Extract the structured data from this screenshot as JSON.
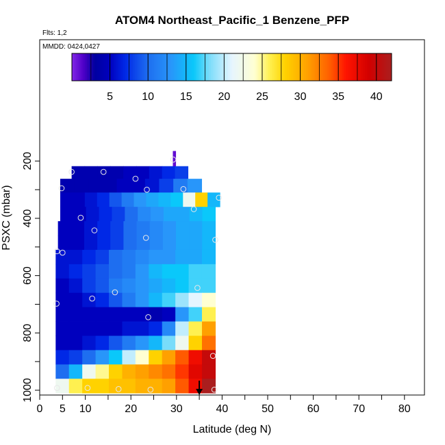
{
  "chart_data": {
    "type": "heatmap",
    "title": "ATOM4 Northeast_Pacific_1 Benzene_PFP",
    "flights_label": "Flts: 1,2",
    "dates_label": "MMDD: 0424,0427",
    "xlabel": "Latitude (deg N)",
    "ylabel": "PSXC (mbar)",
    "xlim": [
      0,
      85
    ],
    "ylim": [
      1010,
      0
    ],
    "x_ticks": [
      0,
      5,
      10,
      20,
      30,
      40,
      50,
      60,
      70,
      80
    ],
    "y_ticks": [
      200,
      400,
      600,
      800,
      1000
    ],
    "colorbar": {
      "range": [
        0,
        42
      ],
      "ticks": [
        5,
        10,
        15,
        20,
        25,
        30,
        35,
        40
      ]
    },
    "latitude_marker": 35,
    "bands": [
      {
        "p_top": 165,
        "p_bot": 218,
        "lat_start": 29.2,
        "lat_end": 29.8,
        "values": [
          1,
          1
        ]
      },
      {
        "p_top": 218,
        "p_bot": 262,
        "lat_start": 7,
        "lat_end": 32.5,
        "values": [
          4,
          4,
          4,
          4,
          5,
          5,
          6,
          7,
          8
        ]
      },
      {
        "p_top": 262,
        "p_bot": 310,
        "lat_start": 4.5,
        "lat_end": 35.5,
        "values": [
          4,
          4,
          4,
          4,
          5,
          5,
          6,
          8,
          11,
          13
        ]
      },
      {
        "p_top": 310,
        "p_bot": 360,
        "lat_start": 4.5,
        "lat_end": 39.5,
        "values": [
          5,
          5,
          6,
          7,
          9,
          11,
          13,
          14,
          15,
          16,
          22,
          28,
          15
        ]
      },
      {
        "p_top": 360,
        "p_bot": 410,
        "lat_start": 4.5,
        "lat_end": 38.5,
        "values": [
          5,
          5,
          6,
          7,
          8,
          10,
          12,
          13,
          14,
          14,
          15,
          16
        ]
      },
      {
        "p_top": 410,
        "p_bot": 460,
        "lat_start": 4,
        "lat_end": 38.5,
        "values": [
          5,
          5,
          6,
          7,
          8,
          10,
          11,
          12,
          13,
          14,
          14,
          15
        ]
      },
      {
        "p_top": 460,
        "p_bot": 510,
        "lat_start": 4,
        "lat_end": 38.5,
        "values": [
          5,
          5,
          6,
          7,
          8,
          10,
          11,
          12,
          13,
          14,
          14,
          15
        ]
      },
      {
        "p_top": 510,
        "p_bot": 560,
        "lat_start": 3.5,
        "lat_end": 38.5,
        "values": [
          6,
          6,
          7,
          8,
          10,
          11,
          12,
          13,
          13,
          14,
          14,
          15
        ]
      },
      {
        "p_top": 560,
        "p_bot": 610,
        "lat_start": 3.5,
        "lat_end": 38.5,
        "values": [
          6,
          7,
          8,
          9,
          10,
          11,
          13,
          15,
          16,
          16,
          17,
          17
        ]
      },
      {
        "p_top": 610,
        "p_bot": 660,
        "lat_start": 3.5,
        "lat_end": 38.5,
        "values": [
          5,
          6,
          8,
          9,
          11,
          12,
          13,
          14,
          15,
          16,
          17,
          17
        ]
      },
      {
        "p_top": 660,
        "p_bot": 710,
        "lat_start": 3.5,
        "lat_end": 38.5,
        "values": [
          5,
          5,
          6,
          7,
          9,
          11,
          13,
          15,
          17,
          19,
          21,
          24
        ]
      },
      {
        "p_top": 710,
        "p_bot": 760,
        "lat_start": 3.5,
        "lat_end": 38.5,
        "values": [
          5,
          5,
          5,
          5,
          5,
          5,
          5,
          4,
          5,
          13,
          17,
          26
        ]
      },
      {
        "p_top": 760,
        "p_bot": 810,
        "lat_start": 3.5,
        "lat_end": 38.5,
        "values": [
          5,
          5,
          5,
          5,
          5,
          6,
          6,
          7,
          12,
          20,
          26,
          31
        ]
      },
      {
        "p_top": 810,
        "p_bot": 860,
        "lat_start": 3.5,
        "lat_end": 38.5,
        "values": [
          5,
          5,
          6,
          7,
          9,
          11,
          13,
          15,
          18,
          22,
          28,
          33
        ]
      },
      {
        "p_top": 860,
        "p_bot": 910,
        "lat_start": 3.5,
        "lat_end": 38.5,
        "values": [
          7,
          8,
          10,
          13,
          16,
          20,
          24,
          28,
          31,
          34,
          37,
          40
        ]
      },
      {
        "p_top": 910,
        "p_bot": 960,
        "lat_start": 3.5,
        "lat_end": 38.5,
        "values": [
          10,
          15,
          22,
          25,
          28,
          30,
          31,
          32,
          33,
          35,
          38,
          40
        ]
      },
      {
        "p_top": 960,
        "p_bot": 1010,
        "lat_start": 3.5,
        "lat_end": 38.5,
        "values": [
          22,
          26,
          28,
          28,
          29,
          29,
          30,
          30,
          31,
          34,
          37,
          42
        ]
      }
    ],
    "points": [
      {
        "lat": 29.3,
        "p": 195
      },
      {
        "lat": 7,
        "p": 238
      },
      {
        "lat": 14,
        "p": 238
      },
      {
        "lat": 21,
        "p": 262
      },
      {
        "lat": 4.8,
        "p": 295
      },
      {
        "lat": 23.5,
        "p": 300
      },
      {
        "lat": 31.5,
        "p": 298
      },
      {
        "lat": 39.3,
        "p": 328
      },
      {
        "lat": 33.8,
        "p": 368
      },
      {
        "lat": 9,
        "p": 398
      },
      {
        "lat": 12,
        "p": 442
      },
      {
        "lat": 23.3,
        "p": 468
      },
      {
        "lat": 38.5,
        "p": 475
      },
      {
        "lat": 3.8,
        "p": 515
      },
      {
        "lat": 5,
        "p": 520
      },
      {
        "lat": 34.6,
        "p": 643
      },
      {
        "lat": 16.5,
        "p": 658
      },
      {
        "lat": 11.5,
        "p": 680
      },
      {
        "lat": 3.7,
        "p": 698
      },
      {
        "lat": 23.8,
        "p": 745
      },
      {
        "lat": 38,
        "p": 880
      },
      {
        "lat": 3.8,
        "p": 992
      },
      {
        "lat": 10.5,
        "p": 992
      },
      {
        "lat": 17.3,
        "p": 996
      },
      {
        "lat": 24.3,
        "p": 998
      },
      {
        "lat": 38.3,
        "p": 998
      }
    ]
  }
}
